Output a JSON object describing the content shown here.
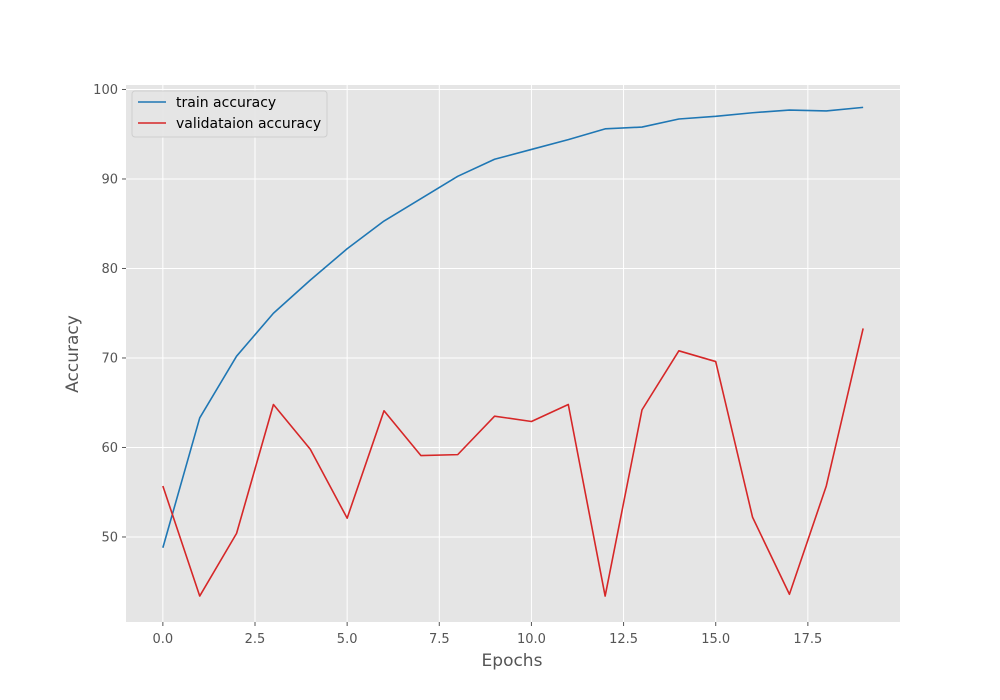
{
  "chart_data": {
    "type": "line",
    "title": "",
    "xlabel": "Epochs",
    "ylabel": "Accuracy",
    "xlim": [
      -1.0,
      20.0
    ],
    "ylim": [
      40.5,
      100.5
    ],
    "xticks": [
      0.0,
      2.5,
      5.0,
      7.5,
      10.0,
      12.5,
      15.0,
      17.5
    ],
    "xtick_labels": [
      "0.0",
      "2.5",
      "5.0",
      "7.5",
      "10.0",
      "12.5",
      "15.0",
      "17.5"
    ],
    "yticks": [
      50,
      60,
      70,
      80,
      90,
      100
    ],
    "ytick_labels": [
      "50",
      "60",
      "70",
      "80",
      "90",
      "100"
    ],
    "grid": true,
    "legend_position": "top-left",
    "x": [
      0,
      1,
      2,
      3,
      4,
      5,
      6,
      7,
      8,
      9,
      10,
      11,
      12,
      13,
      14,
      15,
      16,
      17,
      18,
      19
    ],
    "series": [
      {
        "name": "train accuracy",
        "color": "#1f77b4",
        "values": [
          48.8,
          63.3,
          70.2,
          75.0,
          78.7,
          82.2,
          85.3,
          87.8,
          90.3,
          92.2,
          93.3,
          94.4,
          95.6,
          95.8,
          96.7,
          97.0,
          97.4,
          97.7,
          97.6,
          98.0
        ]
      },
      {
        "name": "validataion accuracy",
        "color": "#d62728",
        "values": [
          55.7,
          43.4,
          50.4,
          64.8,
          59.8,
          52.1,
          64.1,
          59.1,
          59.2,
          63.5,
          62.9,
          64.8,
          43.4,
          64.2,
          70.8,
          69.6,
          52.2,
          43.6,
          55.7,
          73.3
        ]
      }
    ]
  }
}
